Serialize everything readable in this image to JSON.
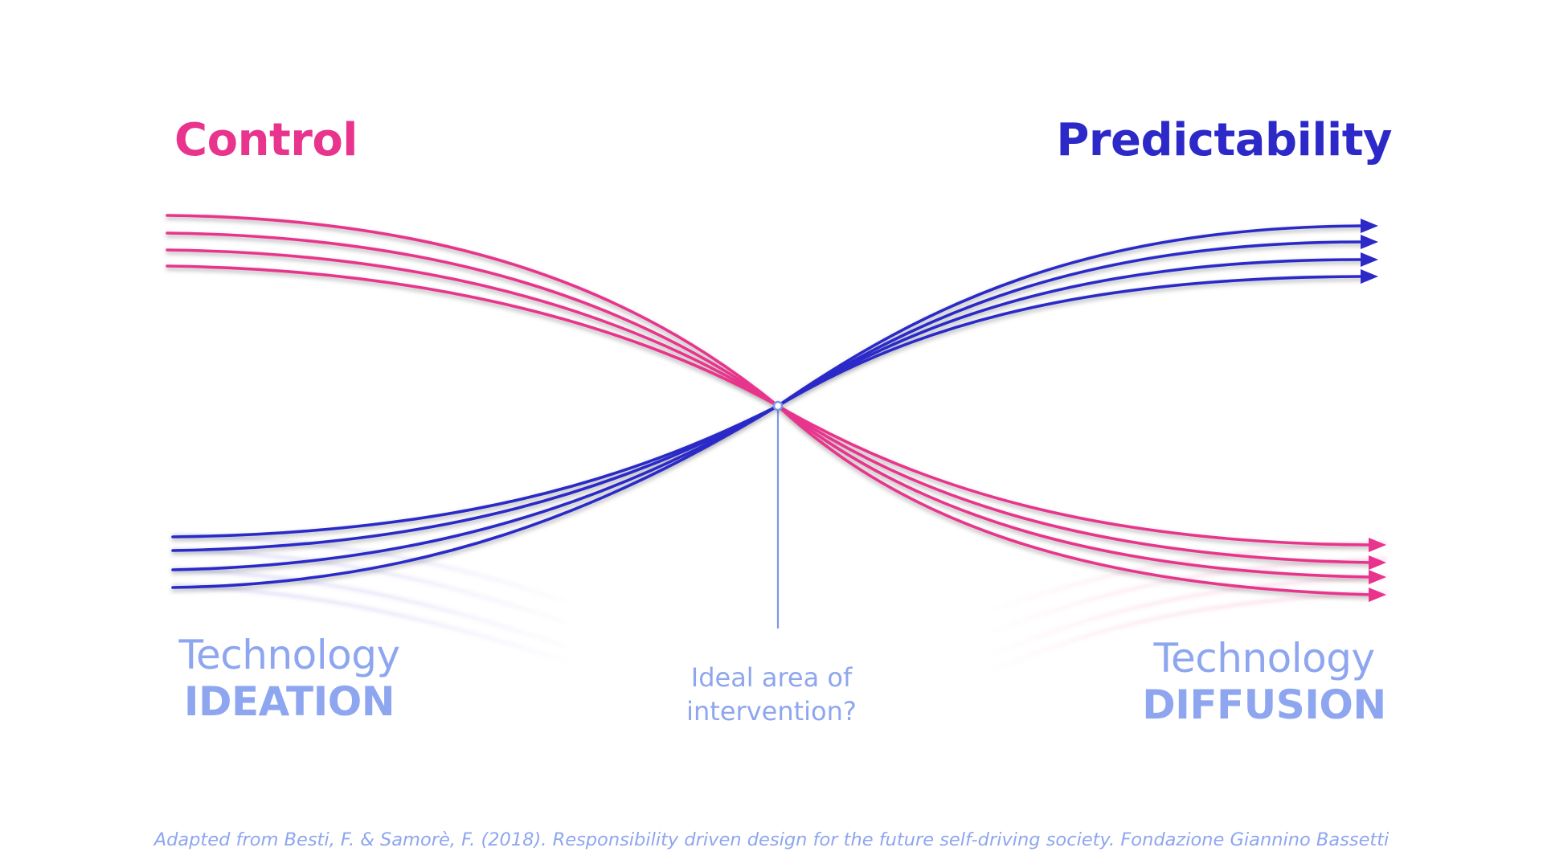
{
  "colors": {
    "control": "#e8348c",
    "predictability": "#2c29c8",
    "label": "#8ea6ef",
    "axis_line": "#7e96ea"
  },
  "labels": {
    "control_heading": "Control",
    "predictability_heading": "Predictability",
    "ideation_top": "Technology",
    "ideation_bottom": "IDEATION",
    "diffusion_top": "Technology",
    "diffusion_bottom": "DIFFUSION",
    "intervention_line1": "Ideal area of",
    "intervention_line2": "intervention?"
  },
  "citation": "Adapted from Besti, F. & Samorè, F. (2018). Responsibility driven design for the future self-driving society. Fondazione Giannino Bassetti",
  "diagram": {
    "control_curves": 4,
    "predictability_curves": 4,
    "arrowheads": true
  }
}
